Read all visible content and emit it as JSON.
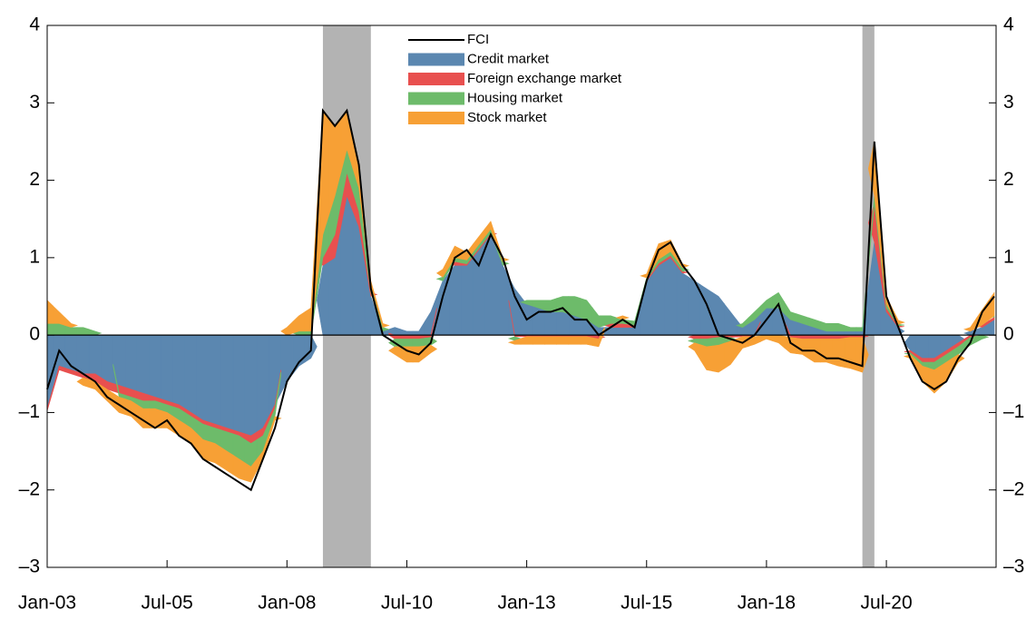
{
  "chart_data": {
    "type": "stacked_area",
    "x": [
      "Jan-03",
      "Apr-03",
      "Jul-03",
      "Oct-03",
      "Jan-04",
      "Apr-04",
      "Jul-04",
      "Oct-04",
      "Jan-05",
      "Apr-05",
      "Jul-05",
      "Oct-05",
      "Jan-06",
      "Apr-06",
      "Jul-06",
      "Oct-06",
      "Jan-07",
      "Apr-07",
      "Jul-07",
      "Oct-07",
      "Jan-08",
      "Apr-08",
      "Jul-08",
      "Oct-08",
      "Jan-09",
      "Apr-09",
      "Jul-09",
      "Oct-09",
      "Jan-10",
      "Apr-10",
      "Jul-10",
      "Oct-10",
      "Jan-11",
      "Apr-11",
      "Jul-11",
      "Oct-11",
      "Jan-12",
      "Apr-12",
      "Jul-12",
      "Oct-12",
      "Jan-13",
      "Apr-13",
      "Jul-13",
      "Oct-13",
      "Jan-14",
      "Apr-14",
      "Jul-14",
      "Oct-14",
      "Jan-15",
      "Apr-15",
      "Jul-15",
      "Oct-15",
      "Jan-16",
      "Apr-16",
      "Jul-16",
      "Oct-16",
      "Jan-17",
      "Apr-17",
      "Jul-17",
      "Oct-17",
      "Jan-18",
      "Apr-18",
      "Jul-18",
      "Oct-18",
      "Jan-19",
      "Apr-19",
      "Jul-19",
      "Oct-19",
      "Jan-20",
      "Apr-20",
      "Jul-20",
      "Oct-20",
      "Jan-21",
      "Apr-21",
      "Jul-21",
      "Oct-21",
      "Jan-22",
      "Apr-22",
      "Jul-22",
      "Oct-22"
    ],
    "series": [
      {
        "name": "FCI",
        "style": "line",
        "color": "#000000",
        "values": [
          -0.7,
          -0.2,
          -0.4,
          -0.5,
          -0.6,
          -0.8,
          -0.9,
          -1.0,
          -1.1,
          -1.2,
          -1.1,
          -1.3,
          -1.4,
          -1.6,
          -1.7,
          -1.8,
          -1.9,
          -2.0,
          -1.6,
          -1.2,
          -0.6,
          -0.35,
          -0.2,
          2.9,
          2.7,
          2.9,
          2.2,
          0.6,
          0.0,
          -0.1,
          -0.2,
          -0.25,
          -0.1,
          0.5,
          1.0,
          1.1,
          0.9,
          1.3,
          1.0,
          0.5,
          0.2,
          0.3,
          0.3,
          0.35,
          0.2,
          0.2,
          0.0,
          0.1,
          0.2,
          0.1,
          0.7,
          1.1,
          1.2,
          0.9,
          0.7,
          0.4,
          0.0,
          -0.05,
          -0.1,
          0.0,
          0.2,
          0.4,
          -0.1,
          -0.2,
          -0.2,
          -0.3,
          -0.3,
          -0.35,
          -0.4,
          2.5,
          0.5,
          0.1,
          -0.3,
          -0.6,
          -0.7,
          -0.6,
          -0.3,
          -0.1,
          0.3,
          0.5
        ]
      },
      {
        "name": "Credit market",
        "style": "area",
        "color": "#5b87b0",
        "values": [
          -0.95,
          -0.4,
          -0.45,
          -0.5,
          -0.5,
          -0.6,
          -0.65,
          -0.7,
          -0.75,
          -0.8,
          -0.85,
          -0.9,
          -1.0,
          -1.1,
          -1.15,
          -1.2,
          -1.25,
          -1.3,
          -1.2,
          -0.9,
          -0.6,
          -0.4,
          -0.3,
          0.9,
          1.0,
          1.8,
          1.4,
          0.5,
          0.05,
          0.1,
          0.05,
          0.05,
          0.3,
          0.7,
          0.9,
          0.9,
          1.1,
          1.3,
          0.9,
          0.6,
          0.4,
          0.35,
          0.3,
          0.3,
          0.25,
          0.2,
          0.1,
          0.1,
          0.1,
          0.1,
          0.7,
          0.9,
          1.0,
          0.8,
          0.7,
          0.6,
          0.5,
          0.3,
          0.1,
          0.2,
          0.35,
          0.35,
          0.2,
          0.15,
          0.1,
          0.05,
          0.05,
          0.05,
          0.05,
          1.2,
          0.3,
          0.1,
          -0.2,
          -0.3,
          -0.3,
          -0.2,
          -0.1,
          0.05,
          0.1,
          0.2
        ]
      },
      {
        "name": "Foreign exchange market",
        "style": "area",
        "color": "#e8504f",
        "values": [
          -0.03,
          -0.05,
          -0.05,
          -0.05,
          -0.1,
          -0.1,
          -0.1,
          -0.1,
          -0.1,
          -0.05,
          -0.05,
          -0.05,
          -0.05,
          -0.05,
          -0.05,
          -0.05,
          -0.05,
          -0.1,
          -0.1,
          -0.05,
          0,
          0,
          0,
          0.1,
          0.3,
          0.3,
          0.2,
          0.05,
          0,
          -0.05,
          -0.05,
          -0.05,
          -0.03,
          0,
          0.05,
          0.02,
          0.02,
          0.02,
          0,
          -0.02,
          -0.02,
          -0.02,
          -0.02,
          -0.02,
          -0.02,
          -0.02,
          -0.05,
          0.05,
          0.05,
          0.03,
          0.02,
          0.03,
          0.03,
          0.02,
          -0.05,
          -0.05,
          -0.03,
          -0.03,
          -0.02,
          -0.02,
          0,
          0,
          -0.03,
          -0.05,
          -0.05,
          -0.05,
          -0.05,
          -0.03,
          -0.03,
          0.5,
          0.05,
          0.02,
          -0.03,
          -0.05,
          -0.05,
          -0.05,
          -0.05,
          -0.03,
          0.03,
          0.03
        ]
      },
      {
        "name": "Housing market",
        "style": "area",
        "color": "#6dbb6a",
        "values": [
          0.15,
          0.15,
          0.1,
          0.1,
          0.05,
          0,
          -0.05,
          -0.05,
          -0.1,
          -0.1,
          -0.1,
          -0.15,
          -0.15,
          -0.2,
          -0.2,
          -0.25,
          -0.3,
          -0.3,
          -0.2,
          -0.1,
          0,
          0.05,
          0.05,
          0.3,
          0.5,
          0.3,
          0.3,
          0.1,
          0.05,
          -0.1,
          -0.1,
          -0.1,
          -0.1,
          0.05,
          0.05,
          0.05,
          0.05,
          0.05,
          0.05,
          -0.05,
          0.05,
          0.1,
          0.15,
          0.2,
          0.25,
          0.25,
          0.15,
          0.1,
          0.05,
          0.05,
          0.02,
          0.05,
          0.05,
          0.05,
          -0.05,
          -0.1,
          -0.1,
          -0.05,
          0.05,
          0.1,
          0.1,
          0.2,
          0.1,
          0.1,
          0.1,
          0.1,
          0.1,
          0.05,
          0.05,
          0.1,
          0.05,
          0.02,
          -0.02,
          -0.05,
          -0.1,
          -0.1,
          -0.1,
          -0.1,
          -0.05,
          0.02
        ]
      },
      {
        "name": "Stock market",
        "style": "area",
        "color": "#f7a035",
        "values": [
          0.3,
          0.15,
          0.05,
          -0.1,
          -0.1,
          -0.15,
          -0.2,
          -0.2,
          -0.25,
          -0.25,
          -0.2,
          -0.2,
          -0.2,
          -0.25,
          -0.25,
          -0.25,
          -0.25,
          -0.2,
          -0.1,
          -0.05,
          0.1,
          0.2,
          0.3,
          1.6,
          0.9,
          0.5,
          0.3,
          0.05,
          0.05,
          -0.1,
          -0.2,
          -0.2,
          -0.1,
          0.1,
          0.15,
          0.1,
          0.1,
          0.1,
          0.05,
          -0.05,
          -0.1,
          -0.1,
          -0.1,
          -0.1,
          -0.1,
          -0.1,
          -0.1,
          0,
          0.05,
          0,
          0.05,
          0.2,
          0.15,
          0.05,
          -0.1,
          -0.3,
          -0.35,
          -0.3,
          -0.15,
          -0.1,
          -0.05,
          -0.1,
          -0.2,
          -0.2,
          -0.3,
          -0.3,
          -0.35,
          -0.4,
          -0.45,
          0.7,
          0.1,
          0.05,
          -0.05,
          -0.2,
          -0.3,
          -0.25,
          -0.1,
          0.05,
          0.2,
          0.3
        ]
      }
    ],
    "shaded": [
      {
        "start": "Oct-08",
        "end": "Oct-09"
      },
      {
        "start": "Jan-20",
        "end": "Apr-20"
      }
    ],
    "shade_color": "#b3b3b3",
    "xticks": [
      "Jan-03",
      "Jul-05",
      "Jan-08",
      "Jul-10",
      "Jan-13",
      "Jul-15",
      "Jan-18",
      "Jul-20"
    ],
    "ylim": [
      -3,
      4
    ],
    "yticks": [
      -3,
      -2,
      -1,
      0,
      1,
      2,
      3,
      4
    ],
    "y2lim": [
      -3,
      4
    ],
    "y2ticks": [
      -3,
      -2,
      -1,
      0,
      1,
      2,
      3,
      4
    ],
    "yticks_labels": [
      "–3",
      "–2",
      "–1",
      "0",
      "1",
      "2",
      "3",
      "4"
    ]
  }
}
